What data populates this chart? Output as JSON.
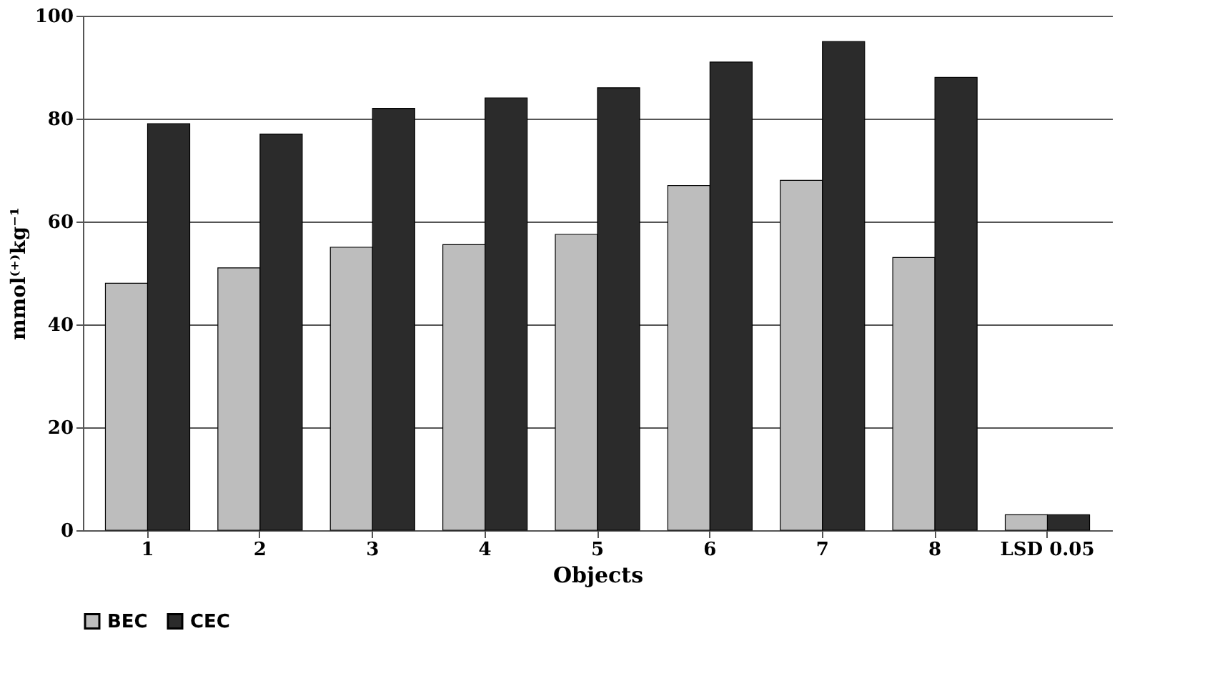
{
  "chart_data": {
    "type": "bar",
    "xlabel": "Objects",
    "ylabel": "mmol⁽⁺⁾kg⁻¹",
    "categories": [
      "1",
      "2",
      "3",
      "4",
      "5",
      "6",
      "7",
      "8",
      "LSD 0.05"
    ],
    "series": [
      {
        "name": "BEC",
        "color": "#bdbdbd",
        "values": [
          48,
          51,
          55,
          55.5,
          57.5,
          67,
          68,
          53,
          3
        ]
      },
      {
        "name": "CEC",
        "color": "#2b2b2b",
        "values": [
          79,
          77,
          82,
          84,
          86,
          91,
          95,
          88,
          3
        ]
      }
    ],
    "ylim": [
      0,
      100
    ],
    "yticks": [
      0,
      20,
      40,
      60,
      80,
      100
    ],
    "grid": "y",
    "legend": "bottom"
  }
}
